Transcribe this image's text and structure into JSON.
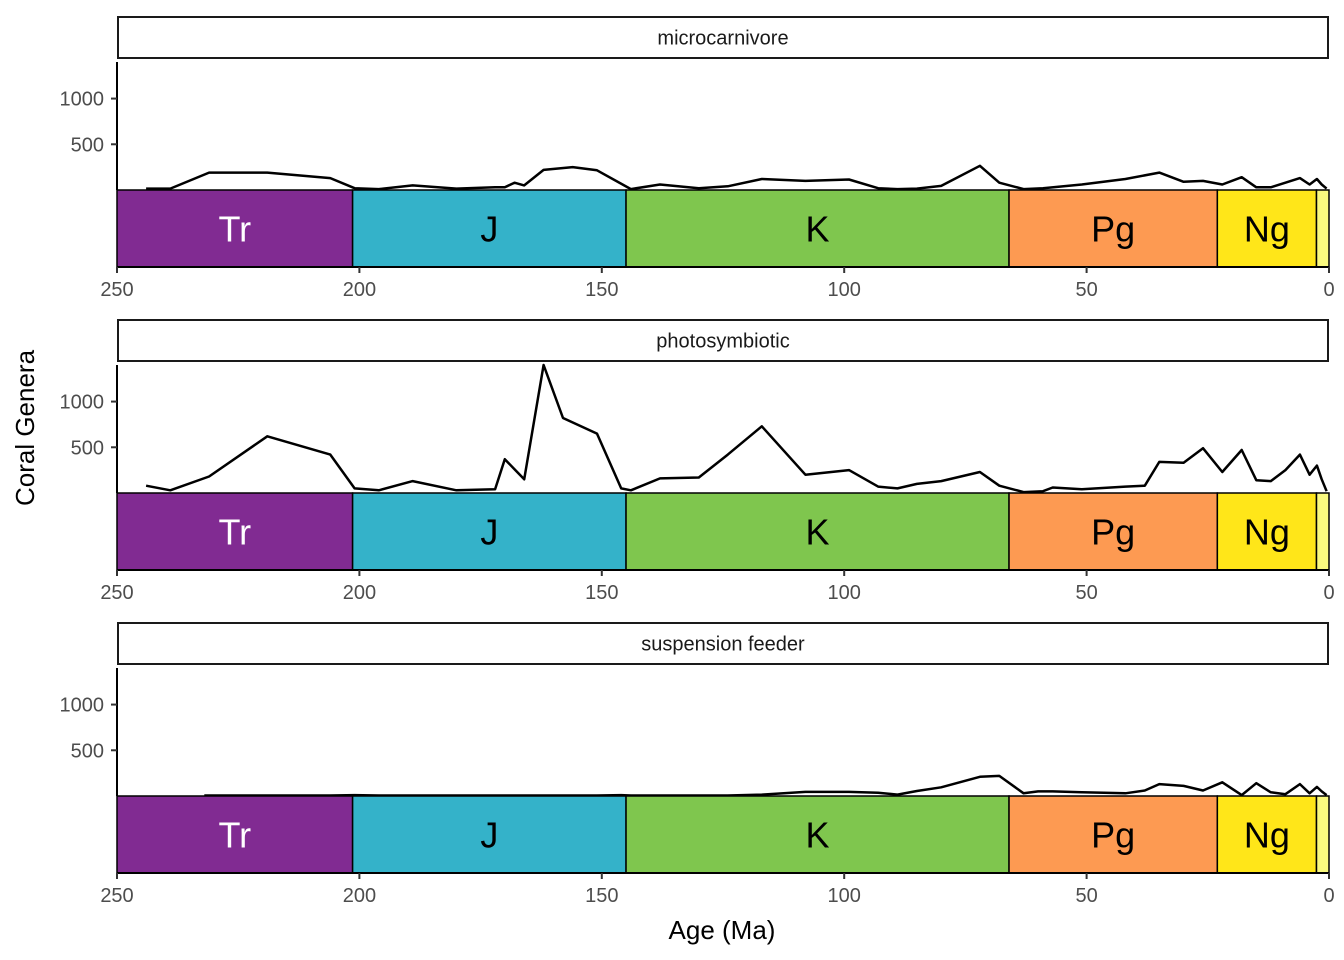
{
  "chart_data": {
    "type": "line",
    "xlabel": "Age (Ma)",
    "ylabel": "Coral Genera",
    "xlim": [
      250,
      0
    ],
    "x_reversed": true,
    "xticks": [
      250,
      200,
      150,
      100,
      50,
      0
    ],
    "yticks": [
      500,
      1000
    ],
    "ylim": [
      0,
      1400
    ],
    "grid": false,
    "line_color": "#000000",
    "periods": [
      {
        "abbr": "Tr",
        "start": 251.9,
        "end": 201.4,
        "color": "#812B92",
        "text_color": "#FFFFFF"
      },
      {
        "abbr": "J",
        "start": 201.4,
        "end": 145.0,
        "color": "#34B2C9",
        "text_color": "#000000"
      },
      {
        "abbr": "K",
        "start": 145.0,
        "end": 66.0,
        "color": "#7FC64E",
        "text_color": "#000000"
      },
      {
        "abbr": "Pg",
        "start": 66.0,
        "end": 23.03,
        "color": "#FD9A52",
        "text_color": "#000000"
      },
      {
        "abbr": "Ng",
        "start": 23.03,
        "end": 2.58,
        "color": "#FFE619",
        "text_color": "#000000"
      },
      {
        "abbr": "",
        "start": 2.58,
        "end": 0.0,
        "color": "#F9F97F",
        "text_color": "#000000"
      }
    ],
    "panels": [
      {
        "label": "microcarnivore",
        "x": [
          244,
          239,
          231,
          219,
          206,
          201,
          196,
          189,
          180,
          172,
          170,
          168,
          166,
          162,
          156,
          151,
          144,
          138,
          130,
          124,
          117,
          108,
          99,
          93,
          89,
          85,
          80,
          72,
          68,
          63,
          59,
          51,
          42,
          35,
          30,
          26,
          22,
          18,
          15,
          12,
          9,
          6,
          4,
          2.5,
          1.5,
          0.5
        ],
        "y": [
          15,
          15,
          190,
          190,
          130,
          20,
          10,
          50,
          15,
          30,
          30,
          80,
          50,
          220,
          250,
          215,
          10,
          60,
          20,
          40,
          120,
          100,
          115,
          20,
          10,
          15,
          45,
          265,
          80,
          10,
          20,
          60,
          120,
          190,
          90,
          100,
          60,
          140,
          30,
          30,
          80,
          130,
          60,
          120,
          60,
          15
        ]
      },
      {
        "label": "photosymbiotic",
        "x": [
          244,
          239,
          231,
          219,
          206,
          201,
          196,
          189,
          180,
          172,
          170,
          168,
          166,
          162,
          158,
          151,
          146,
          144,
          138,
          130,
          124,
          117,
          108,
          99,
          93,
          89,
          85,
          80,
          72,
          68,
          63,
          59,
          57,
          51,
          42,
          38,
          35,
          30,
          26,
          22,
          18,
          15,
          12,
          9,
          6,
          4,
          2.5,
          1.5,
          0.5
        ],
        "y": [
          80,
          30,
          180,
          620,
          420,
          50,
          30,
          130,
          30,
          40,
          370,
          260,
          150,
          1400,
          820,
          650,
          50,
          30,
          160,
          170,
          420,
          730,
          200,
          250,
          70,
          50,
          100,
          130,
          230,
          80,
          10,
          20,
          60,
          40,
          70,
          80,
          340,
          330,
          490,
          230,
          470,
          140,
          130,
          250,
          420,
          200,
          300,
          150,
          20
        ]
      },
      {
        "label": "suspension feeder",
        "x": [
          232,
          219,
          206,
          201,
          196,
          189,
          180,
          172,
          170,
          168,
          166,
          162,
          158,
          151,
          146,
          144,
          138,
          130,
          124,
          117,
          108,
          99,
          93,
          89,
          85,
          80,
          72,
          68,
          63,
          60,
          57,
          51,
          42,
          38,
          35,
          30,
          26,
          22,
          18,
          15,
          12,
          9,
          6,
          4,
          2.5,
          1.5,
          0.5
        ],
        "y": [
          5,
          5,
          5,
          10,
          5,
          5,
          5,
          5,
          5,
          5,
          5,
          5,
          5,
          5,
          10,
          5,
          5,
          5,
          5,
          15,
          45,
          45,
          35,
          15,
          55,
          95,
          210,
          220,
          30,
          50,
          50,
          40,
          30,
          60,
          130,
          110,
          60,
          150,
          10,
          140,
          40,
          20,
          130,
          30,
          100,
          50,
          10
        ]
      }
    ]
  }
}
